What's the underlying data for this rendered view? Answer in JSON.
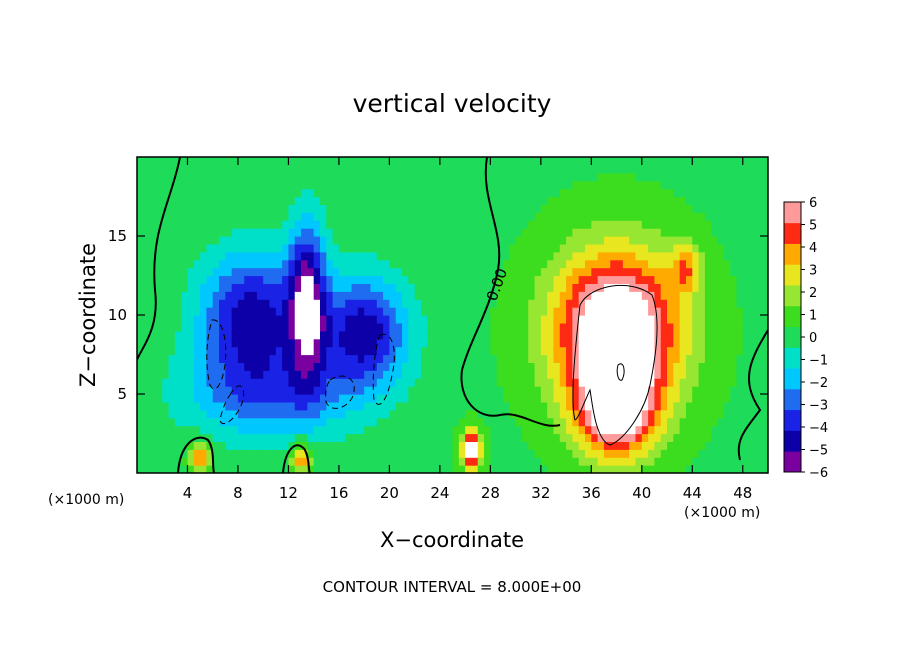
{
  "chart_data": {
    "type": "heatmap",
    "title": "vertical velocity",
    "xlabel": "X−coordinate",
    "ylabel": "Z−coordinate",
    "x_unit_label": "(×1000 m)",
    "x_unit_label_right": "(×1000 m)",
    "xlim": [
      0,
      50
    ],
    "ylim": [
      0,
      20
    ],
    "x_ticks": [
      4,
      8,
      12,
      16,
      20,
      24,
      28,
      32,
      36,
      40,
      44,
      48
    ],
    "x_tick_labels": [
      "4",
      "8",
      "12",
      "16",
      "20",
      "24",
      "28",
      "32",
      "36",
      "40",
      "44",
      "48"
    ],
    "y_ticks": [
      5,
      10,
      15
    ],
    "y_tick_labels": [
      "5",
      "10",
      "15"
    ],
    "colorbar": {
      "min": -6,
      "max": 6,
      "tick_labels": [
        "6",
        "5",
        "4",
        "3",
        "2",
        "1",
        "0",
        "−1",
        "−2",
        "−3",
        "−4",
        "−5",
        "−6"
      ],
      "colors": [
        "#7a00a0",
        "#0d00a8",
        "#1a22e6",
        "#1f6cf0",
        "#00c8ff",
        "#00e0c8",
        "#1edc5a",
        "#3cdc1e",
        "#96e632",
        "#e8e61e",
        "#ffaa00",
        "#ff2a14",
        "#ff9a9a"
      ]
    },
    "contour_label": "0.00",
    "annotation": "CONTOUR INTERVAL = 8.000E+00",
    "features": [
      {
        "kind": "downdraft",
        "x": 9,
        "z": 10,
        "sx": 4,
        "sz": 4,
        "w": -5
      },
      {
        "kind": "downdraft",
        "x": 13.5,
        "z": 11,
        "sx": 1.5,
        "sz": 5,
        "w": -5.5
      },
      {
        "kind": "downdraft",
        "x": 18,
        "z": 9,
        "sx": 3.5,
        "sz": 3.5,
        "w": -5
      },
      {
        "kind": "downdraft",
        "x": 10.5,
        "z": 5,
        "sx": 7,
        "sz": 3,
        "w": -3
      },
      {
        "kind": "updraft",
        "x": 38,
        "z": 9,
        "sx": 5,
        "sz": 5,
        "w": 8
      },
      {
        "kind": "updraft",
        "x": 38,
        "z": 4,
        "sx": 3,
        "sz": 3,
        "w": 6
      },
      {
        "kind": "updraft",
        "x": 43.5,
        "z": 13,
        "sx": 1.2,
        "sz": 1.5,
        "w": 3
      },
      {
        "kind": "updraft",
        "x": 5,
        "z": 1,
        "sx": 0.8,
        "sz": 1,
        "w": 4
      },
      {
        "kind": "updraft",
        "x": 13,
        "z": 1,
        "sx": 0.8,
        "sz": 1,
        "w": 4
      },
      {
        "kind": "updraft",
        "x": 26.5,
        "z": 1.5,
        "sx": 0.8,
        "sz": 1.2,
        "w": 7
      }
    ]
  }
}
